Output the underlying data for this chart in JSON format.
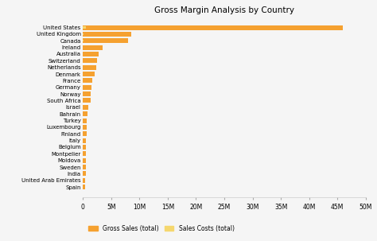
{
  "title": "Gross Margin Analysis by Country",
  "countries": [
    "United States",
    "United Kingdom",
    "Canada",
    "Ireland",
    "Australia",
    "Switzerland",
    "Netherlands",
    "Denmark",
    "France",
    "Germany",
    "Norway",
    "South Africa",
    "Israel",
    "Bahrain",
    "Turkey",
    "Luxembourg",
    "Finland",
    "Italy",
    "Belgium",
    "Montpelier",
    "Moldova",
    "Sweden",
    "India",
    "United Arab Emirates",
    "Spain"
  ],
  "gross_sales": [
    46000000,
    8500000,
    8000000,
    3500000,
    2800000,
    2500000,
    2400000,
    2000000,
    1700000,
    1500000,
    1400000,
    1300000,
    900000,
    800000,
    700000,
    650000,
    600000,
    580000,
    560000,
    530000,
    510000,
    490000,
    470000,
    420000,
    380000
  ],
  "sales_costs": [
    500000,
    50000,
    50000,
    30000,
    25000,
    22000,
    20000,
    18000,
    15000,
    14000,
    13000,
    12000,
    9000,
    8000,
    7000,
    6500,
    6000,
    5800,
    5600,
    5300,
    5100,
    4900,
    4700,
    4200,
    3800
  ],
  "bar_color_gross": "#F5A130",
  "bar_color_costs": "#F5D76E",
  "background_color": "#f5f5f5",
  "title_fontsize": 7.5,
  "label_fontsize": 5.0,
  "tick_fontsize": 5.5,
  "xlim": [
    0,
    50000000
  ],
  "xticks": [
    0,
    5000000,
    10000000,
    15000000,
    20000000,
    25000000,
    30000000,
    35000000,
    40000000,
    45000000,
    50000000
  ],
  "xtick_labels": [
    "0",
    "5M",
    "10M",
    "15M",
    "20M",
    "25M",
    "30M",
    "35M",
    "40M",
    "45M",
    "50M"
  ],
  "legend_labels": [
    "Gross Sales (total)",
    "Sales Costs (total)"
  ]
}
